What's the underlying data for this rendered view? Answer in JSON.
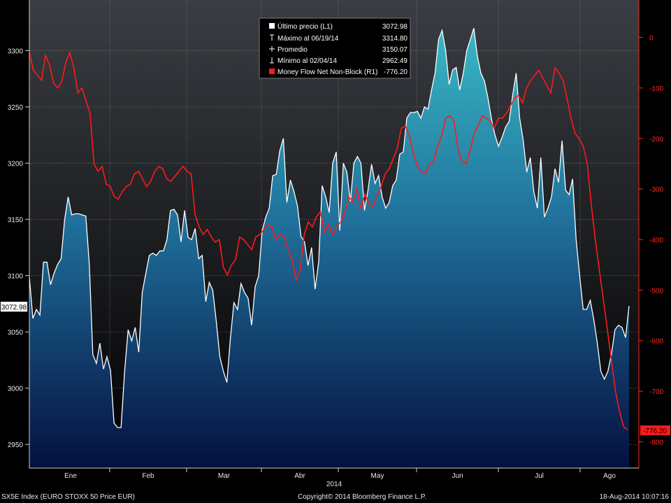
{
  "chart_data": {
    "type": "area",
    "x_label": "2014",
    "months": [
      "Ene",
      "Feb",
      "Mar",
      "Abr",
      "May",
      "Jun",
      "Jul",
      "Ago"
    ],
    "left_axis": {
      "ticks": [
        2950,
        3000,
        3050,
        3100,
        3150,
        3200,
        3250,
        3300
      ],
      "ylim": [
        2929,
        3345
      ]
    },
    "right_axis": {
      "ticks": [
        0,
        -100,
        -200,
        -300,
        -400,
        -500,
        -600,
        -700,
        -800
      ],
      "ylim": [
        -852,
        74
      ]
    },
    "grid": true,
    "legend_position": "top-center",
    "colors": {
      "price_line": "#ffffff",
      "area_top": "#2aa8b8",
      "area_bottom": "#061040",
      "money_flow": "#ff1a1a",
      "right_axis": "#ff2a1f"
    },
    "series": [
      {
        "name": "Último precio (L1)",
        "axis": "left",
        "values": [
          3099,
          3062,
          3070,
          3065,
          3112,
          3112,
          3092,
          3102,
          3110,
          3115,
          3150,
          3170,
          3154,
          3155,
          3155,
          3154,
          3153,
          3110,
          3030,
          3022,
          3040,
          3017,
          3028,
          3016,
          2969,
          2965,
          2965,
          3015,
          3052,
          3042,
          3054,
          3032,
          3085,
          3102,
          3118,
          3120,
          3118,
          3122,
          3122,
          3132,
          3158,
          3159,
          3154,
          3130,
          3158,
          3134,
          3132,
          3142,
          3115,
          3118,
          3077,
          3094,
          3087,
          3059,
          3028,
          3015,
          3005,
          3045,
          3076,
          3070,
          3093,
          3085,
          3080,
          3056,
          3090,
          3100,
          3140,
          3152,
          3160,
          3189,
          3190,
          3211,
          3222,
          3165,
          3185,
          3175,
          3162,
          3135,
          3130,
          3109,
          3125,
          3088,
          3112,
          3180,
          3170,
          3156,
          3200,
          3210,
          3140,
          3200,
          3192,
          3166,
          3200,
          3206,
          3200,
          3158,
          3176,
          3199,
          3182,
          3189,
          3170,
          3160,
          3165,
          3180,
          3185,
          3208,
          3210,
          3240,
          3245,
          3245,
          3246,
          3240,
          3250,
          3248,
          3265,
          3280,
          3310,
          3318,
          3300,
          3270,
          3283,
          3285,
          3265,
          3280,
          3300,
          3310,
          3320,
          3295,
          3280,
          3273,
          3258,
          3239,
          3225,
          3215,
          3223,
          3232,
          3237,
          3260,
          3280,
          3240,
          3220,
          3192,
          3205,
          3175,
          3160,
          3205,
          3152,
          3160,
          3170,
          3195,
          3183,
          3220,
          3176,
          3172,
          3186,
          3132,
          3100,
          3070,
          3070,
          3078,
          3061,
          3040,
          3015,
          3008,
          3015,
          3030,
          3052,
          3056,
          3054,
          3045,
          3072.98
        ]
      },
      {
        "name": "Money Flow Net Non-Block (R1)",
        "axis": "right",
        "values": [
          -30,
          -65,
          -75,
          -85,
          -35,
          -55,
          -90,
          -100,
          -88,
          -50,
          -30,
          -60,
          -110,
          -100,
          -125,
          -150,
          -250,
          -265,
          -255,
          -290,
          -295,
          -315,
          -320,
          -305,
          -295,
          -290,
          -270,
          -265,
          -280,
          -295,
          -285,
          -265,
          -255,
          -260,
          -280,
          -285,
          -275,
          -265,
          -255,
          -265,
          -270,
          -350,
          -375,
          -390,
          -380,
          -395,
          -405,
          -400,
          -455,
          -470,
          -450,
          -440,
          -395,
          -400,
          -410,
          -420,
          -395,
          -390,
          -380,
          -370,
          -375,
          -400,
          -390,
          -395,
          -420,
          -440,
          -480,
          -460,
          -390,
          -365,
          -375,
          -355,
          -345,
          -385,
          -370,
          -390,
          -375,
          -365,
          -350,
          -315,
          -325,
          -300,
          -340,
          -310,
          -330,
          -335,
          -315,
          -295,
          -270,
          -260,
          -240,
          -220,
          -180,
          -175,
          -195,
          -230,
          -255,
          -265,
          -270,
          -250,
          -245,
          -215,
          -195,
          -160,
          -155,
          -165,
          -220,
          -245,
          -250,
          -225,
          -190,
          -175,
          -155,
          -160,
          -165,
          -180,
          -160,
          -160,
          -150,
          -135,
          -120,
          -115,
          -130,
          -100,
          -85,
          -75,
          -65,
          -80,
          -95,
          -110,
          -60,
          -70,
          -85,
          -120,
          -160,
          -190,
          -200,
          -215,
          -250,
          -330,
          -400,
          -460,
          -520,
          -580,
          -640,
          -700,
          -740,
          -770,
          -776.2
        ]
      }
    ],
    "current_values": {
      "price": "3072.98",
      "money_flow": "-776.20"
    }
  },
  "legend": [
    {
      "label": "Último precio (L1)",
      "value": "3072.98",
      "marker": "square-white"
    },
    {
      "label": "Máximo al 06/19/14",
      "value": "3314.80",
      "marker": "max"
    },
    {
      "label": "Promedio",
      "value": "3150.07",
      "marker": "avg"
    },
    {
      "label": "Mínimo al 02/04/14",
      "value": "2962.49",
      "marker": "min"
    },
    {
      "label": "Money Flow Net Non-Block (R1)",
      "value": "-776.20",
      "marker": "square-red"
    }
  ],
  "footer": {
    "left": "SX5E Index (EURO STOXX 50 Price EUR)",
    "center": "Copyright© 2014 Bloomberg Finance L.P.",
    "right": "18-Aug-2014 10:07:16"
  }
}
